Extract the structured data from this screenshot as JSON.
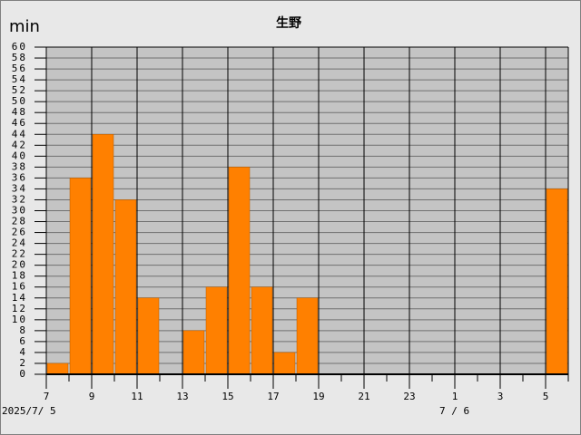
{
  "chart_data": {
    "type": "bar",
    "title": "生野",
    "y_label": "min",
    "categories": [
      "7",
      null,
      "9",
      null,
      "11",
      null,
      "13",
      null,
      "15",
      null,
      "17",
      null,
      "19",
      null,
      "21",
      null,
      "23",
      null,
      "1",
      null,
      "3",
      null,
      "5"
    ],
    "values": [
      2,
      36,
      44,
      32,
      14,
      0,
      8,
      16,
      38,
      16,
      4,
      14,
      0,
      0,
      0,
      0,
      0,
      0,
      0,
      0,
      0,
      0,
      34
    ],
    "color": "#ff8000",
    "dates": [
      "2025/7/ 5",
      "7 / 6"
    ],
    "ylim": [
      0,
      60
    ],
    "yticks": [
      0,
      2,
      4,
      6,
      8,
      10,
      12,
      14,
      16,
      18,
      20,
      22,
      24,
      26,
      28,
      30,
      32,
      34,
      36,
      38,
      40,
      42,
      44,
      46,
      48,
      50,
      52,
      54,
      56,
      58,
      60
    ],
    "grid": true
  }
}
